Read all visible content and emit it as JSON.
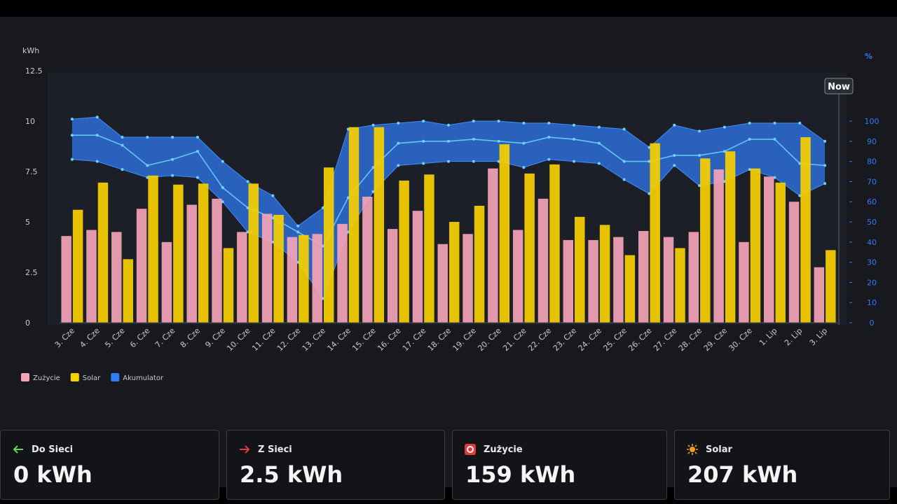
{
  "chart_data": {
    "type": "bar",
    "y_unit": "kWh",
    "y2_unit": "%",
    "now_label": "Now",
    "categories": [
      "3. Cze",
      "4. Cze",
      "5. Cze",
      "6. Cze",
      "7. Cze",
      "8. Cze",
      "9. Cze",
      "10. Cze",
      "11. Cze",
      "12. Cze",
      "13. Cze",
      "14. Cze",
      "15. Cze",
      "16. Cze",
      "17. Cze",
      "18. Cze",
      "19. Cze",
      "20. Cze",
      "21. Cze",
      "22. Cze",
      "23. Cze",
      "24. Cze",
      "25. Cze",
      "26. Cze",
      "27. Cze",
      "28. Cze",
      "29. Cze",
      "30. Cze",
      "1. Lip",
      "2. Lip",
      "3. Lip"
    ],
    "ylim": [
      0,
      12.5
    ],
    "yticks": [
      0,
      2.5,
      5,
      7.5,
      10,
      12.5
    ],
    "y2lim": [
      0,
      125
    ],
    "y2ticks": [
      0,
      10,
      20,
      30,
      40,
      50,
      60,
      70,
      80,
      90,
      100
    ],
    "grid": false,
    "series": [
      {
        "name": "Zużycie",
        "color": "#f5a3b7",
        "values": [
          4.3,
          4.6,
          4.5,
          5.65,
          4.0,
          5.85,
          6.15,
          4.5,
          5.4,
          4.25,
          4.4,
          4.9,
          6.25,
          4.65,
          5.55,
          3.9,
          4.4,
          7.65,
          4.6,
          6.15,
          4.1,
          4.1,
          4.25,
          4.55,
          4.25,
          4.5,
          7.6,
          4.0,
          7.25,
          6.0,
          2.75
        ]
      },
      {
        "name": "Solar",
        "color": "#f7d000",
        "values": [
          5.6,
          6.95,
          3.15,
          7.3,
          6.85,
          6.9,
          3.7,
          6.9,
          5.35,
          4.35,
          7.7,
          9.7,
          9.7,
          7.05,
          7.35,
          5.0,
          5.8,
          8.85,
          7.4,
          7.85,
          5.25,
          4.85,
          3.35,
          8.9,
          3.7,
          8.15,
          8.5,
          7.65,
          6.95,
          9.2,
          3.6
        ]
      },
      {
        "name": "Akumulator",
        "color": "#2f7cf6",
        "axis": "y2",
        "values": [
          93,
          93,
          88,
          78,
          81,
          85,
          67,
          57,
          52,
          45,
          38,
          62,
          77,
          89,
          90,
          90,
          91,
          90,
          89,
          92,
          91,
          89,
          80,
          80,
          83,
          83,
          85,
          91,
          91,
          79,
          78
        ],
        "low": [
          81,
          80,
          76,
          72,
          73,
          72,
          60,
          45,
          40,
          30,
          12,
          45,
          65,
          78,
          79,
          80,
          80,
          80,
          77,
          81,
          80,
          79,
          71,
          64,
          78,
          68,
          70,
          76,
          72,
          63,
          69
        ],
        "high": [
          101,
          102,
          92,
          92,
          92,
          92,
          80,
          70,
          63,
          48,
          57,
          96,
          98,
          99,
          100,
          98,
          100,
          100,
          99,
          99,
          98,
          97,
          96,
          87,
          98,
          95,
          97,
          99,
          99,
          99,
          90
        ]
      }
    ]
  },
  "cards": [
    {
      "label": "Do Sieci",
      "value": "0 kWh"
    },
    {
      "label": "Z Sieci",
      "value": "2.5 kWh"
    },
    {
      "label": "Zużycie",
      "value": "159 kWh"
    },
    {
      "label": "Solar",
      "value": "207 kWh"
    }
  ]
}
